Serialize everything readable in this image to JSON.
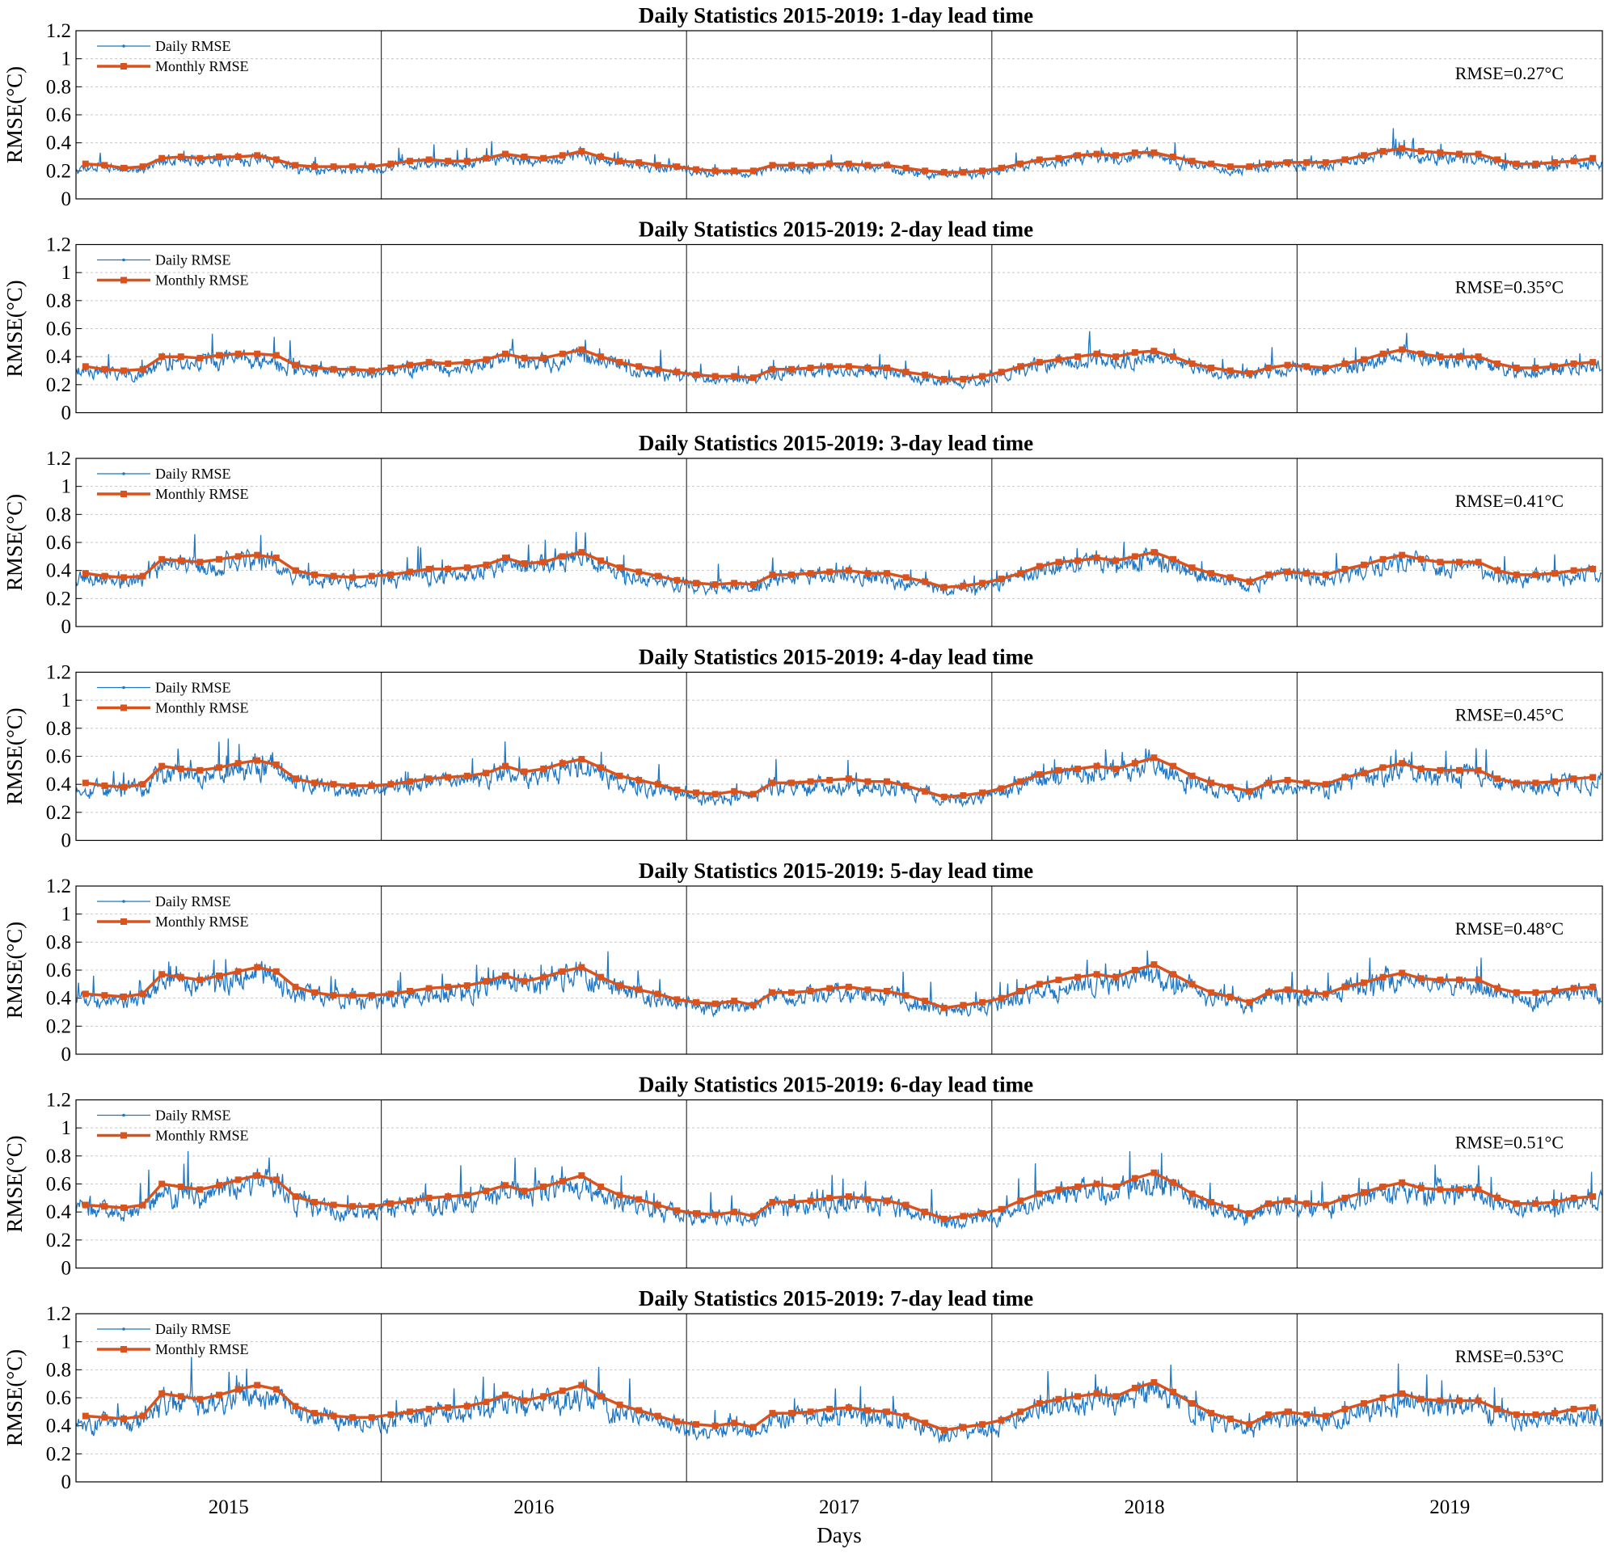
{
  "colors": {
    "daily": "#1f77c4",
    "monthly": "#d9531e",
    "grid": "#c8c8c8",
    "axis": "#000000"
  },
  "xlabel": "Days",
  "chart_data": [
    {
      "type": "line",
      "title": "Daily Statistics 2015-2019: 1-day lead time",
      "ylabel": "RMSE(°C)",
      "xlabel": "",
      "ylim": [
        0,
        1.2
      ],
      "yticks": [
        "0",
        "0.2",
        "0.4",
        "0.6",
        "0.8",
        "1",
        "1.2"
      ],
      "x_tick_labels": [
        "2015",
        "2016",
        "2017",
        "2018",
        "2019"
      ],
      "grid": "horizontal dotted",
      "legend_position": "top-left",
      "annotation": "RMSE=0.27°C",
      "daily_seed": 11,
      "series": [
        {
          "name": "Daily RMSE"
        },
        {
          "name": "Monthly RMSE",
          "values": [
            0.25,
            0.24,
            0.22,
            0.23,
            0.29,
            0.3,
            0.29,
            0.3,
            0.3,
            0.31,
            0.28,
            0.24,
            0.23,
            0.23,
            0.23,
            0.23,
            0.25,
            0.27,
            0.28,
            0.27,
            0.27,
            0.29,
            0.32,
            0.3,
            0.29,
            0.31,
            0.34,
            0.3,
            0.27,
            0.26,
            0.24,
            0.23,
            0.21,
            0.2,
            0.2,
            0.2,
            0.24,
            0.24,
            0.24,
            0.25,
            0.25,
            0.24,
            0.24,
            0.22,
            0.2,
            0.19,
            0.19,
            0.2,
            0.22,
            0.25,
            0.28,
            0.29,
            0.31,
            0.32,
            0.31,
            0.33,
            0.33,
            0.3,
            0.27,
            0.25,
            0.23,
            0.23,
            0.25,
            0.26,
            0.26,
            0.26,
            0.28,
            0.31,
            0.34,
            0.36,
            0.34,
            0.33,
            0.32,
            0.32,
            0.28,
            0.25,
            0.25,
            0.26,
            0.27,
            0.29
          ]
        }
      ]
    },
    {
      "type": "line",
      "title": "Daily Statistics 2015-2019: 2-day lead time",
      "ylabel": "RMSE(°C)",
      "xlabel": "",
      "ylim": [
        0,
        1.2
      ],
      "yticks": [
        "0",
        "0.2",
        "0.4",
        "0.6",
        "0.8",
        "1",
        "1.2"
      ],
      "x_tick_labels": [
        "2015",
        "2016",
        "2017",
        "2018",
        "2019"
      ],
      "grid": "horizontal dotted",
      "legend_position": "top-left",
      "annotation": "RMSE=0.35°C",
      "daily_seed": 23,
      "series": [
        {
          "name": "Daily RMSE"
        },
        {
          "name": "Monthly RMSE",
          "values": [
            0.33,
            0.31,
            0.3,
            0.31,
            0.4,
            0.4,
            0.39,
            0.41,
            0.42,
            0.42,
            0.41,
            0.34,
            0.32,
            0.31,
            0.31,
            0.3,
            0.32,
            0.34,
            0.36,
            0.35,
            0.36,
            0.38,
            0.42,
            0.39,
            0.39,
            0.42,
            0.45,
            0.4,
            0.36,
            0.33,
            0.31,
            0.29,
            0.27,
            0.26,
            0.26,
            0.25,
            0.31,
            0.31,
            0.32,
            0.33,
            0.33,
            0.32,
            0.32,
            0.29,
            0.27,
            0.24,
            0.24,
            0.26,
            0.29,
            0.33,
            0.36,
            0.38,
            0.4,
            0.42,
            0.4,
            0.43,
            0.44,
            0.4,
            0.35,
            0.32,
            0.3,
            0.28,
            0.32,
            0.34,
            0.33,
            0.32,
            0.35,
            0.38,
            0.42,
            0.45,
            0.42,
            0.4,
            0.4,
            0.4,
            0.35,
            0.32,
            0.32,
            0.33,
            0.35,
            0.36
          ]
        }
      ]
    },
    {
      "type": "line",
      "title": "Daily Statistics 2015-2019: 3-day lead time",
      "ylabel": "RMSE(°C)",
      "xlabel": "",
      "ylim": [
        0,
        1.2
      ],
      "yticks": [
        "0",
        "0.2",
        "0.4",
        "0.6",
        "0.8",
        "1",
        "1.2"
      ],
      "x_tick_labels": [
        "2015",
        "2016",
        "2017",
        "2018",
        "2019"
      ],
      "grid": "horizontal dotted",
      "legend_position": "top-left",
      "annotation": "RMSE=0.41°C",
      "daily_seed": 37,
      "series": [
        {
          "name": "Daily RMSE"
        },
        {
          "name": "Monthly RMSE",
          "values": [
            0.38,
            0.36,
            0.35,
            0.36,
            0.48,
            0.47,
            0.46,
            0.48,
            0.5,
            0.51,
            0.49,
            0.4,
            0.37,
            0.36,
            0.35,
            0.36,
            0.37,
            0.39,
            0.41,
            0.41,
            0.42,
            0.44,
            0.49,
            0.45,
            0.46,
            0.5,
            0.53,
            0.47,
            0.42,
            0.39,
            0.36,
            0.33,
            0.31,
            0.3,
            0.31,
            0.3,
            0.37,
            0.37,
            0.38,
            0.39,
            0.4,
            0.38,
            0.38,
            0.35,
            0.32,
            0.28,
            0.29,
            0.31,
            0.34,
            0.38,
            0.43,
            0.46,
            0.47,
            0.49,
            0.47,
            0.5,
            0.53,
            0.48,
            0.42,
            0.38,
            0.35,
            0.32,
            0.37,
            0.39,
            0.38,
            0.37,
            0.41,
            0.44,
            0.48,
            0.51,
            0.48,
            0.46,
            0.46,
            0.46,
            0.4,
            0.37,
            0.37,
            0.38,
            0.4,
            0.41
          ]
        }
      ]
    },
    {
      "type": "line",
      "title": "Daily Statistics 2015-2019: 4-day lead time",
      "ylabel": "RMSE(°C)",
      "xlabel": "",
      "ylim": [
        0,
        1.2
      ],
      "yticks": [
        "0",
        "0.2",
        "0.4",
        "0.6",
        "0.8",
        "1",
        "1.2"
      ],
      "x_tick_labels": [
        "2015",
        "2016",
        "2017",
        "2018",
        "2019"
      ],
      "grid": "horizontal dotted",
      "legend_position": "top-left",
      "annotation": "RMSE=0.45°C",
      "daily_seed": 53,
      "series": [
        {
          "name": "Daily RMSE"
        },
        {
          "name": "Monthly RMSE",
          "values": [
            0.41,
            0.39,
            0.38,
            0.4,
            0.53,
            0.51,
            0.5,
            0.52,
            0.55,
            0.57,
            0.54,
            0.44,
            0.41,
            0.4,
            0.39,
            0.39,
            0.4,
            0.42,
            0.44,
            0.45,
            0.46,
            0.48,
            0.53,
            0.49,
            0.51,
            0.55,
            0.58,
            0.52,
            0.46,
            0.43,
            0.4,
            0.36,
            0.34,
            0.33,
            0.35,
            0.33,
            0.41,
            0.41,
            0.42,
            0.43,
            0.44,
            0.42,
            0.42,
            0.39,
            0.35,
            0.31,
            0.32,
            0.34,
            0.37,
            0.42,
            0.47,
            0.5,
            0.51,
            0.53,
            0.51,
            0.55,
            0.59,
            0.53,
            0.46,
            0.41,
            0.38,
            0.35,
            0.41,
            0.43,
            0.41,
            0.4,
            0.45,
            0.48,
            0.52,
            0.55,
            0.51,
            0.5,
            0.5,
            0.5,
            0.44,
            0.41,
            0.41,
            0.42,
            0.44,
            0.45
          ]
        }
      ]
    },
    {
      "type": "line",
      "title": "Daily Statistics 2015-2019: 5-day lead time",
      "ylabel": "RMSE(°C)",
      "xlabel": "",
      "ylim": [
        0,
        1.2
      ],
      "yticks": [
        "0",
        "0.2",
        "0.4",
        "0.6",
        "0.8",
        "1",
        "1.2"
      ],
      "x_tick_labels": [
        "2015",
        "2016",
        "2017",
        "2018",
        "2019"
      ],
      "grid": "horizontal dotted",
      "legend_position": "top-left",
      "annotation": "RMSE=0.48°C",
      "daily_seed": 71,
      "series": [
        {
          "name": "Daily RMSE"
        },
        {
          "name": "Monthly RMSE",
          "values": [
            0.43,
            0.42,
            0.41,
            0.43,
            0.57,
            0.55,
            0.53,
            0.56,
            0.59,
            0.62,
            0.59,
            0.48,
            0.44,
            0.42,
            0.42,
            0.42,
            0.43,
            0.45,
            0.47,
            0.48,
            0.49,
            0.52,
            0.56,
            0.52,
            0.55,
            0.59,
            0.62,
            0.55,
            0.49,
            0.46,
            0.43,
            0.39,
            0.37,
            0.36,
            0.38,
            0.35,
            0.44,
            0.44,
            0.45,
            0.47,
            0.48,
            0.46,
            0.45,
            0.42,
            0.38,
            0.33,
            0.35,
            0.37,
            0.4,
            0.45,
            0.5,
            0.53,
            0.55,
            0.57,
            0.55,
            0.6,
            0.64,
            0.57,
            0.5,
            0.44,
            0.41,
            0.37,
            0.44,
            0.46,
            0.44,
            0.43,
            0.48,
            0.51,
            0.55,
            0.58,
            0.54,
            0.53,
            0.53,
            0.53,
            0.47,
            0.44,
            0.44,
            0.45,
            0.47,
            0.48
          ]
        }
      ]
    },
    {
      "type": "line",
      "title": "Daily Statistics 2015-2019: 6-day lead time",
      "ylabel": "RMSE(°C)",
      "xlabel": "",
      "ylim": [
        0,
        1.2
      ],
      "yticks": [
        "0",
        "0.2",
        "0.4",
        "0.6",
        "0.8",
        "1",
        "1.2"
      ],
      "x_tick_labels": [
        "2015",
        "2016",
        "2017",
        "2018",
        "2019"
      ],
      "grid": "horizontal dotted",
      "legend_position": "top-left",
      "annotation": "RMSE=0.51°C",
      "daily_seed": 89,
      "series": [
        {
          "name": "Daily RMSE"
        },
        {
          "name": "Monthly RMSE",
          "values": [
            0.45,
            0.44,
            0.43,
            0.45,
            0.6,
            0.58,
            0.56,
            0.59,
            0.63,
            0.66,
            0.63,
            0.51,
            0.47,
            0.45,
            0.44,
            0.44,
            0.46,
            0.48,
            0.5,
            0.51,
            0.52,
            0.55,
            0.59,
            0.55,
            0.58,
            0.62,
            0.66,
            0.58,
            0.52,
            0.49,
            0.45,
            0.41,
            0.39,
            0.38,
            0.4,
            0.37,
            0.47,
            0.47,
            0.48,
            0.5,
            0.51,
            0.49,
            0.48,
            0.45,
            0.4,
            0.35,
            0.37,
            0.39,
            0.42,
            0.48,
            0.53,
            0.56,
            0.58,
            0.6,
            0.58,
            0.64,
            0.68,
            0.61,
            0.53,
            0.47,
            0.43,
            0.39,
            0.46,
            0.48,
            0.46,
            0.45,
            0.5,
            0.54,
            0.58,
            0.61,
            0.57,
            0.56,
            0.56,
            0.56,
            0.5,
            0.46,
            0.46,
            0.47,
            0.5,
            0.51
          ]
        }
      ]
    },
    {
      "type": "line",
      "title": "Daily Statistics 2015-2019: 7-day lead time",
      "ylabel": "RMSE(°C)",
      "xlabel": "Days",
      "ylim": [
        0,
        1.2
      ],
      "yticks": [
        "0",
        "0.2",
        "0.4",
        "0.6",
        "0.8",
        "1",
        "1.2"
      ],
      "x_tick_labels": [
        "2015",
        "2016",
        "2017",
        "2018",
        "2019"
      ],
      "grid": "horizontal dotted",
      "legend_position": "top-left",
      "annotation": "RMSE=0.53°C",
      "daily_seed": 97,
      "series": [
        {
          "name": "Daily RMSE"
        },
        {
          "name": "Monthly RMSE",
          "values": [
            0.47,
            0.46,
            0.45,
            0.47,
            0.63,
            0.61,
            0.59,
            0.62,
            0.66,
            0.69,
            0.66,
            0.54,
            0.49,
            0.47,
            0.46,
            0.46,
            0.48,
            0.5,
            0.52,
            0.53,
            0.54,
            0.57,
            0.62,
            0.58,
            0.61,
            0.65,
            0.69,
            0.61,
            0.55,
            0.51,
            0.47,
            0.43,
            0.41,
            0.4,
            0.42,
            0.39,
            0.49,
            0.49,
            0.5,
            0.52,
            0.53,
            0.51,
            0.5,
            0.47,
            0.42,
            0.37,
            0.39,
            0.41,
            0.44,
            0.5,
            0.56,
            0.59,
            0.61,
            0.63,
            0.61,
            0.67,
            0.71,
            0.64,
            0.56,
            0.49,
            0.45,
            0.41,
            0.48,
            0.5,
            0.48,
            0.47,
            0.52,
            0.56,
            0.6,
            0.63,
            0.59,
            0.58,
            0.58,
            0.58,
            0.52,
            0.48,
            0.48,
            0.49,
            0.52,
            0.53
          ]
        }
      ]
    }
  ]
}
